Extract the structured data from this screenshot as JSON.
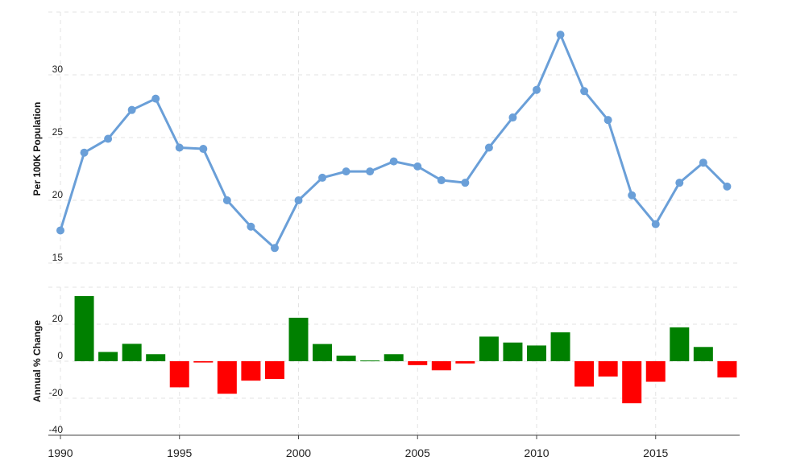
{
  "chart_data": [
    {
      "type": "line",
      "ylabel": "Per 100K Population",
      "ylim": [
        15,
        35
      ],
      "yticks": [
        15,
        20,
        25,
        30
      ],
      "x": [
        1990,
        1991,
        1992,
        1993,
        1994,
        1995,
        1996,
        1997,
        1998,
        1999,
        2000,
        2001,
        2002,
        2003,
        2004,
        2005,
        2006,
        2007,
        2008,
        2009,
        2010,
        2011,
        2012,
        2013,
        2014,
        2015,
        2016,
        2017,
        2018
      ],
      "series": [
        {
          "values": [
            17.6,
            23.8,
            24.9,
            27.2,
            28.1,
            24.2,
            24.1,
            20.0,
            17.9,
            16.2,
            20.0,
            21.8,
            22.3,
            22.3,
            23.1,
            22.7,
            21.6,
            21.4,
            24.2,
            26.6,
            28.8,
            33.2,
            28.7,
            26.4,
            20.4,
            18.1,
            21.4,
            23.0,
            21.1
          ],
          "color": "#6a9fd8"
        }
      ],
      "grid": true
    },
    {
      "type": "bar",
      "ylabel": "Annual % Change",
      "ylim": [
        -40,
        40
      ],
      "yticks": [
        -40,
        -20,
        0,
        20
      ],
      "x": [
        1991,
        1992,
        1993,
        1994,
        1995,
        1996,
        1997,
        1998,
        1999,
        2000,
        2001,
        2002,
        2003,
        2004,
        2005,
        2006,
        2007,
        2008,
        2009,
        2010,
        2011,
        2012,
        2013,
        2014,
        2015,
        2016,
        2017,
        2018
      ],
      "values": [
        35.2,
        5.0,
        9.4,
        3.8,
        -14.1,
        -0.7,
        -17.6,
        -10.5,
        -9.6,
        23.5,
        9.3,
        3.0,
        0.4,
        3.8,
        -2.1,
        -4.9,
        -1.2,
        13.3,
        10.1,
        8.5,
        15.6,
        -13.7,
        -8.3,
        -22.7,
        -11.1,
        18.3,
        7.7,
        -8.8
      ],
      "positive_color": "#008000",
      "negative_color": "#ff0000",
      "grid": true
    }
  ],
  "xaxis": {
    "ticks": [
      1990,
      1995,
      2000,
      2005,
      2010,
      2015
    ]
  }
}
